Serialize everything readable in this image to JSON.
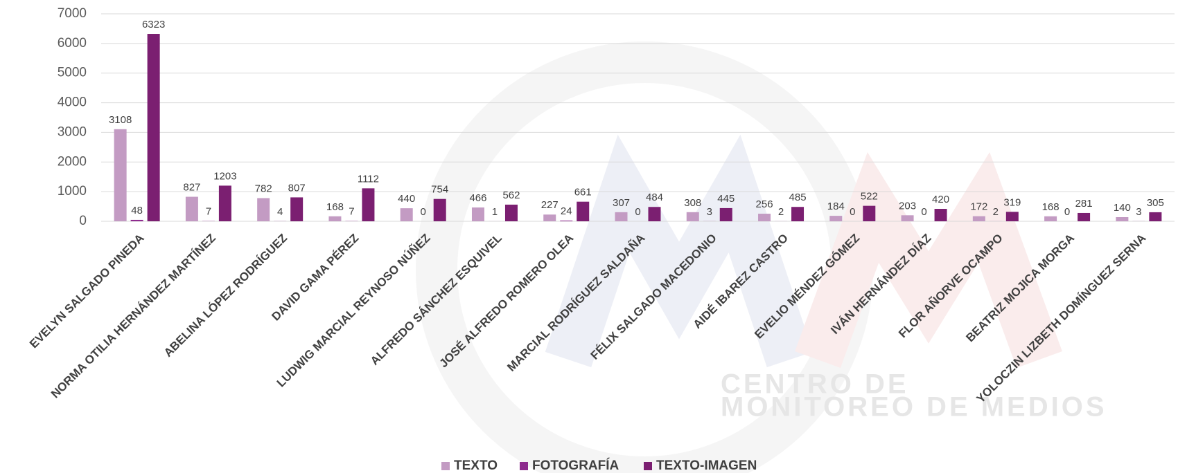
{
  "chart_data": {
    "type": "bar",
    "categories": [
      "EVELYN SALGADO PINEDA",
      "NORMA OTILIA HERNÁNDEZ MARTÍNEZ",
      "ABELINA LÓPEZ RODRÍGUEZ",
      "DAVID GAMA PÉREZ",
      "LUDWIG MARCIAL REYNOSO NÚÑEZ",
      "ALFREDO SÁNCHEZ ESQUIVEL",
      "JOSÉ ALFREDO ROMERO OLEA",
      "MARCIAL RODRÍGUEZ SALDAÑA",
      "FÉLIX SALGADO MACEDONIO",
      "AIDÉ IBAREZ CASTRO",
      "EVELIO MÉNDEZ GÓMEZ",
      "IVÁN HERNÁNDEZ DÍAZ",
      "FLOR AÑORVE OCAMPO",
      "BEATRIZ MOJICA MORGA",
      "YOLOCZIN LIZBETH DOMÍNGUEZ SERNA"
    ],
    "series": [
      {
        "name": "TEXTO",
        "color": "#c39bc3",
        "values": [
          3108,
          827,
          782,
          168,
          440,
          466,
          227,
          307,
          308,
          256,
          184,
          203,
          172,
          168,
          140
        ]
      },
      {
        "name": "FOTOGRAFÍA",
        "color": "#8e2b8e",
        "values": [
          48,
          7,
          4,
          7,
          0,
          1,
          24,
          0,
          3,
          2,
          0,
          0,
          2,
          0,
          3
        ]
      },
      {
        "name": "TEXTO-IMAGEN",
        "color": "#7b1f71",
        "values": [
          6323,
          1203,
          807,
          1112,
          754,
          562,
          661,
          484,
          445,
          485,
          522,
          420,
          319,
          281,
          305
        ]
      }
    ],
    "ylim": [
      0,
      7000
    ],
    "yticks": [
      0,
      1000,
      2000,
      3000,
      4000,
      5000,
      6000,
      7000
    ],
    "grid": true,
    "legend": "bottom"
  },
  "watermark": [
    "CENTRO DE",
    "MONITOREO DE MEDIOS"
  ]
}
